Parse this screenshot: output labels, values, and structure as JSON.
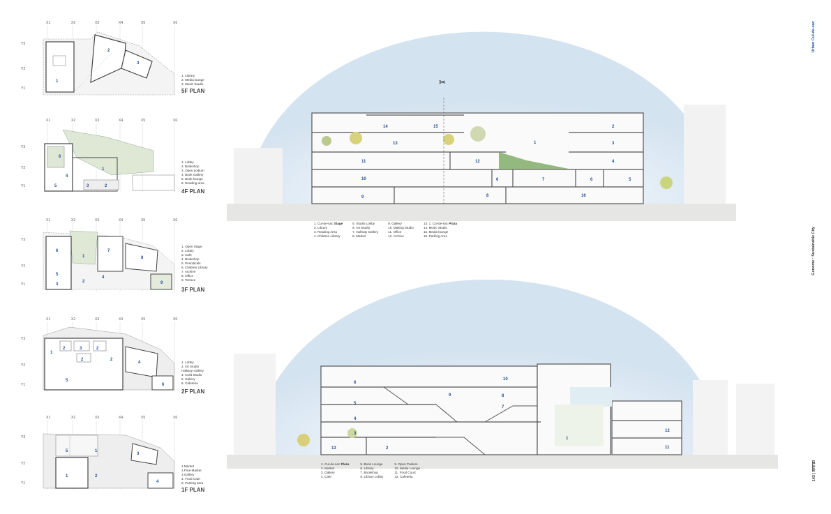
{
  "side": {
    "top": "Urban Cul-de-sac",
    "middle": "Genome : Sustainable City",
    "page": "143",
    "sep": "|",
    "num": "정석현"
  },
  "axes": {
    "x": [
      "X1",
      "X2",
      "X3",
      "X4",
      "X5",
      "X6"
    ],
    "y": [
      "Y3",
      "Y2",
      "Y1"
    ]
  },
  "plans": [
    {
      "title": "5F PLAN",
      "legend": [
        "1. Library",
        "2. Media lounge",
        "3. Music Studio"
      ],
      "labels": [
        "1",
        "2",
        "3"
      ]
    },
    {
      "title": "4F PLAN",
      "legend": [
        "1. Lobby",
        "2. Bookshop",
        "3. Open podium",
        "4. Book Gallery",
        "5. Book lounge",
        "6. Reading area"
      ],
      "labels": [
        "6",
        "1",
        "4",
        "5",
        "3",
        "2"
      ]
    },
    {
      "title": "3F PLAN",
      "legend": [
        "1. Open Stage",
        "2. Lobby",
        "3. Cafe",
        "4. Bookshop",
        "5. Periodicals",
        "6. Children Library",
        "7. Archive",
        "8. Office",
        "9. Terrace"
      ],
      "labels": [
        "6",
        "1",
        "7",
        "8",
        "5",
        "2",
        "4",
        "3",
        "9"
      ]
    },
    {
      "title": "2F PLAN",
      "legend": [
        "1. Lobby",
        "2. Art Studio",
        "Hallway Gallery",
        "4. Craft Studio",
        "5. Gallery",
        "6. Cafeteria"
      ],
      "labels": [
        "1",
        "2",
        "3",
        "2",
        "2",
        "2",
        "4",
        "5",
        "6"
      ]
    },
    {
      "title": "1F PLAN",
      "legend": [
        "1.Market",
        "2.Free Market",
        "3.Gallery",
        "4. Food court",
        "5. Parking area"
      ],
      "labels": [
        "5",
        "1",
        "3",
        "1",
        "2",
        "4"
      ]
    }
  ],
  "section1": {
    "labels": [
      "14",
      "15",
      "2",
      "13",
      "1",
      "3",
      "11",
      "12",
      "4",
      "10",
      "6",
      "7",
      "6",
      "5",
      "9",
      "8",
      "16"
    ],
    "legend_cols": [
      [
        "1. Cul-de-sac ",
        "2. Library",
        "3. Reading Area",
        "4. Children Library"
      ],
      [
        "5. Studio Lobby",
        "6. Art Studio",
        "7. Hallway Gallery",
        "8. Market"
      ],
      [
        "9. Gallery",
        "10. Making Studio",
        "11. Office",
        "12. Archive"
      ],
      [
        "13. 1. Cul-de-sac ",
        "14. Music Studio",
        "15. Media lounge",
        "16. Parking Area"
      ]
    ],
    "legend_bold_1": "Stage",
    "legend_bold_2": "Plaza"
  },
  "section2": {
    "labels": [
      "6",
      "10",
      "9",
      "8",
      "5",
      "7",
      "4",
      "3",
      "13",
      "2",
      "1",
      "12",
      "11"
    ],
    "legend_cols": [
      [
        "1. Cul-de-sac ",
        "2. Market",
        "3. Gallery",
        "4. Cafe"
      ],
      [
        "5. Book Lounge",
        "6. Library",
        "7. Bookshop",
        "8. Library Lobby"
      ],
      [
        "9. Open Podium",
        "10. Media Lounge",
        "11. Food Court",
        "12. Cafeteria"
      ]
    ],
    "legend_bold": "Plaza"
  }
}
